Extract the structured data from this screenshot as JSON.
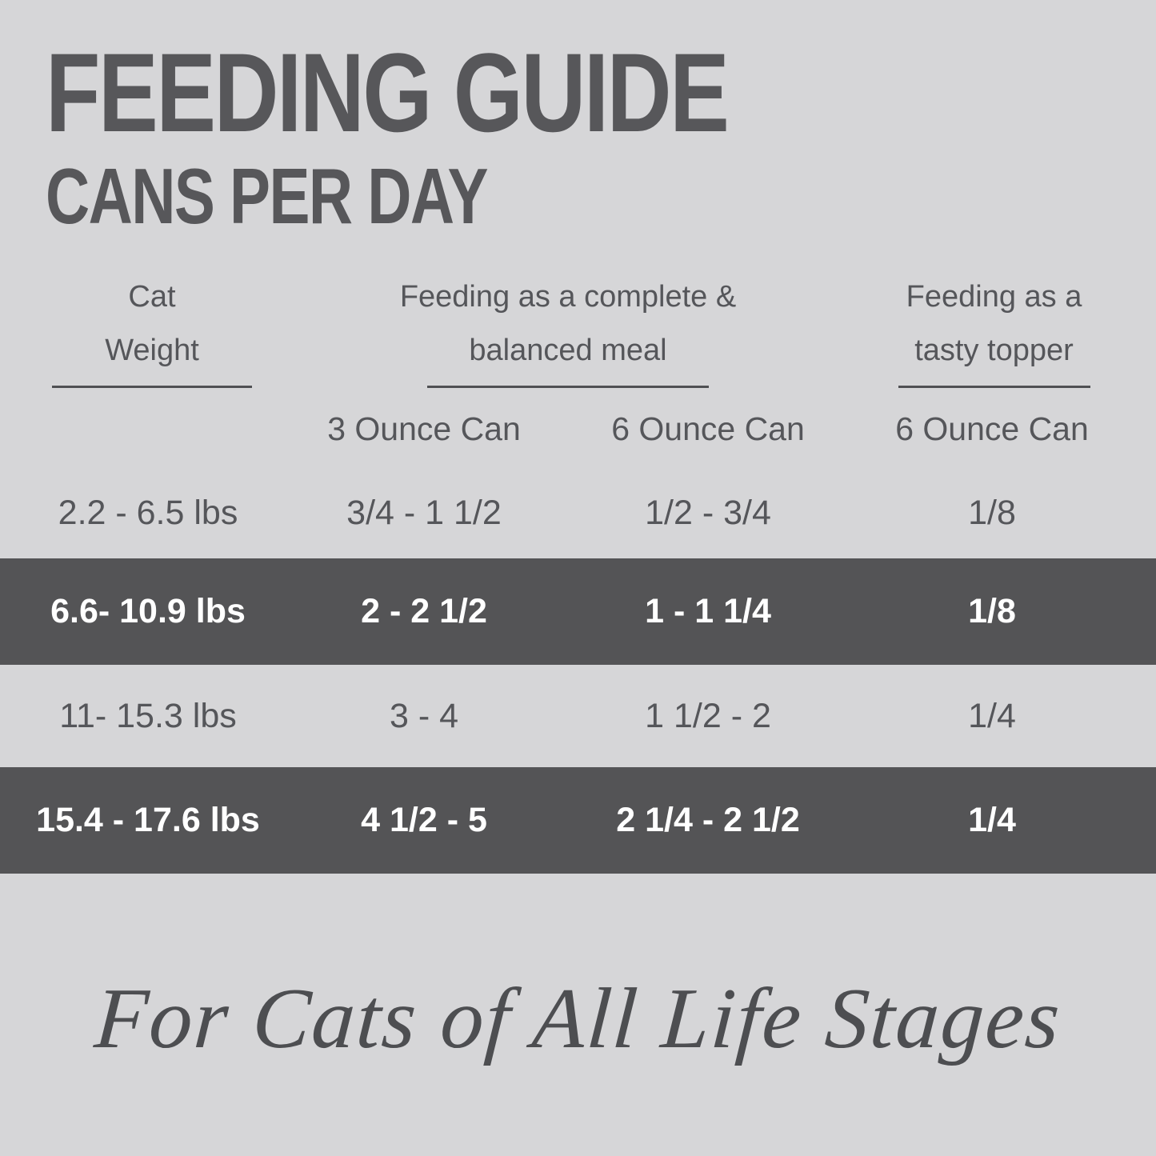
{
  "title": "FEEDING GUIDE",
  "subtitle": "CANS PER DAY",
  "colors": {
    "background": "#d6d6d8",
    "highlight_band": "#545456",
    "text": "#55565a",
    "band_text": "#ffffff"
  },
  "table": {
    "column_headers": [
      {
        "line1": "Cat",
        "line2": "Weight"
      },
      {
        "line1": "Feeding as a complete &",
        "line2": "balanced meal"
      },
      {
        "line1": "Feeding as a",
        "line2": "tasty topper"
      }
    ],
    "sub_headers": [
      "3 Ounce Can",
      "6 Ounce Can",
      "6 Ounce Can"
    ],
    "rows": [
      {
        "weight": "2.2 - 6.5 lbs",
        "meal_3oz": "3/4 - 1 1/2",
        "meal_6oz": "1/2 - 3/4",
        "topper_6oz": "1/8",
        "highlighted": false
      },
      {
        "weight": "6.6- 10.9 lbs",
        "meal_3oz": "2 - 2 1/2",
        "meal_6oz": "1 - 1 1/4",
        "topper_6oz": "1/8",
        "highlighted": true
      },
      {
        "weight": "11- 15.3 lbs",
        "meal_3oz": "3 - 4",
        "meal_6oz": "1 1/2 - 2",
        "topper_6oz": "1/4",
        "highlighted": false
      },
      {
        "weight": "15.4 - 17.6 lbs",
        "meal_3oz": "4 1/2 - 5",
        "meal_6oz": "2 1/4 - 2 1/2",
        "topper_6oz": "1/4",
        "highlighted": true
      }
    ]
  },
  "tagline": "For Cats of All Life Stages",
  "chart_data": {
    "type": "table",
    "title": "FEEDING GUIDE",
    "subtitle": "CANS PER DAY",
    "column_groups": [
      "Cat Weight",
      "Feeding as a complete & balanced meal",
      "Feeding as a tasty topper"
    ],
    "columns": [
      "Cat Weight",
      "Complete & balanced meal — 3 Ounce Can",
      "Complete & balanced meal — 6 Ounce Can",
      "Tasty topper — 6 Ounce Can"
    ],
    "rows": [
      [
        "2.2 - 6.5 lbs",
        "3/4 - 1 1/2",
        "1/2 - 3/4",
        "1/8"
      ],
      [
        "6.6- 10.9 lbs",
        "2 - 2 1/2",
        "1 - 1 1/4",
        "1/8"
      ],
      [
        "11- 15.3 lbs",
        "3 - 4",
        "1 1/2 - 2",
        "1/4"
      ],
      [
        "15.4 - 17.6 lbs",
        "4 1/2 - 5",
        "2 1/4 - 2 1/2",
        "1/4"
      ]
    ],
    "highlighted_row_indices": [
      1,
      3
    ],
    "footnote": "For Cats of All Life Stages"
  }
}
